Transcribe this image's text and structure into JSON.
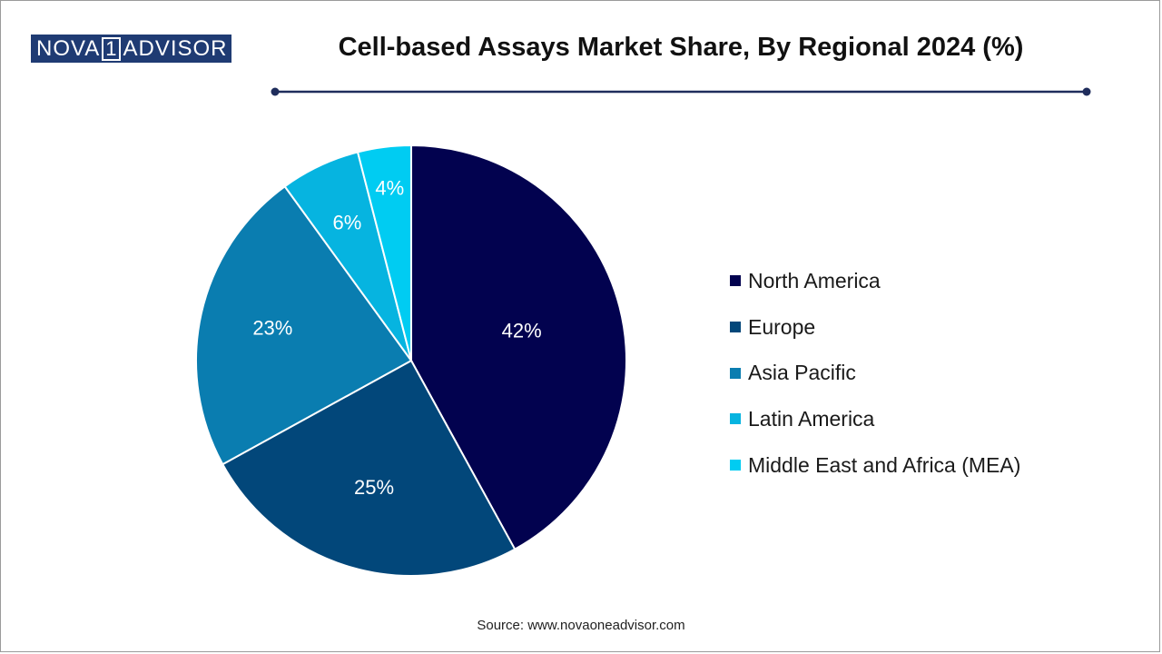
{
  "logo": {
    "part1": "NOVA",
    "part2": "1",
    "part3": "ADVISOR"
  },
  "source": "Source: www.novaoneadvisor.com",
  "colors": {
    "title_rule": "#1f2d5c",
    "slice_border": "#ffffff",
    "label_text": "#ffffff"
  },
  "chart_data": {
    "type": "pie",
    "title": "Cell-based Assays Market Share, By Regional 2024 (%)",
    "categories": [
      "North America",
      "Europe",
      "Asia Pacific",
      "Latin America",
      "Middle East and Africa (MEA)"
    ],
    "values": [
      42,
      25,
      23,
      6,
      4
    ],
    "labels": [
      "42%",
      "25%",
      "23%",
      "6%",
      "4%"
    ],
    "colors": [
      "#02024f",
      "#02477a",
      "#0a7db0",
      "#06b4e0",
      "#00ccf2"
    ],
    "legend": "right",
    "start": "top, clockwise"
  }
}
